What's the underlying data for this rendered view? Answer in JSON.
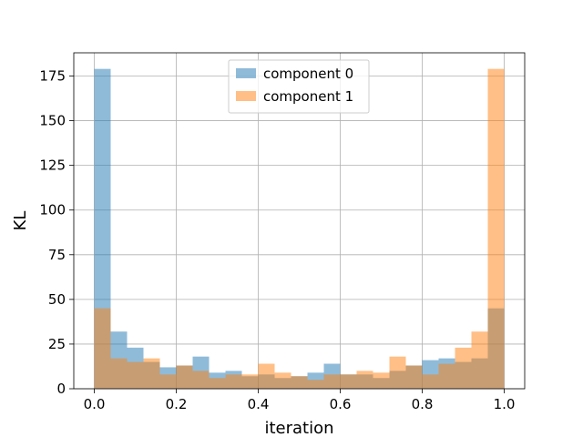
{
  "chart_data": {
    "type": "bar",
    "subtype": "histogram-overlay",
    "title": "",
    "xlabel": "iteration",
    "ylabel": "KL",
    "xlim": [
      -0.05,
      1.05
    ],
    "ylim": [
      0,
      188
    ],
    "bin_width": 0.04,
    "bin_start": 0.0,
    "xticks": [
      0.0,
      0.2,
      0.4,
      0.6,
      0.8,
      1.0
    ],
    "xtick_labels": [
      "0.0",
      "0.2",
      "0.4",
      "0.6",
      "0.8",
      "1.0"
    ],
    "yticks": [
      0,
      25,
      50,
      75,
      100,
      125,
      150,
      175
    ],
    "ytick_labels": [
      "0",
      "25",
      "50",
      "75",
      "100",
      "125",
      "150",
      "175"
    ],
    "grid": true,
    "legend_position": "top-center",
    "series": [
      {
        "name": "component 0",
        "color": "#1f77b4",
        "alpha": 0.5,
        "values": [
          179,
          32,
          23,
          15,
          12,
          13,
          18,
          9,
          10,
          7,
          8,
          6,
          7,
          9,
          14,
          8,
          8,
          6,
          10,
          13,
          16,
          17,
          15,
          17,
          45
        ]
      },
      {
        "name": "component 1",
        "color": "#ff7f0e",
        "alpha": 0.5,
        "values": [
          45,
          17,
          15,
          17,
          8,
          13,
          10,
          6,
          8,
          8,
          14,
          9,
          7,
          5,
          8,
          8,
          10,
          9,
          18,
          13,
          8,
          14,
          23,
          32,
          179
        ]
      }
    ]
  }
}
